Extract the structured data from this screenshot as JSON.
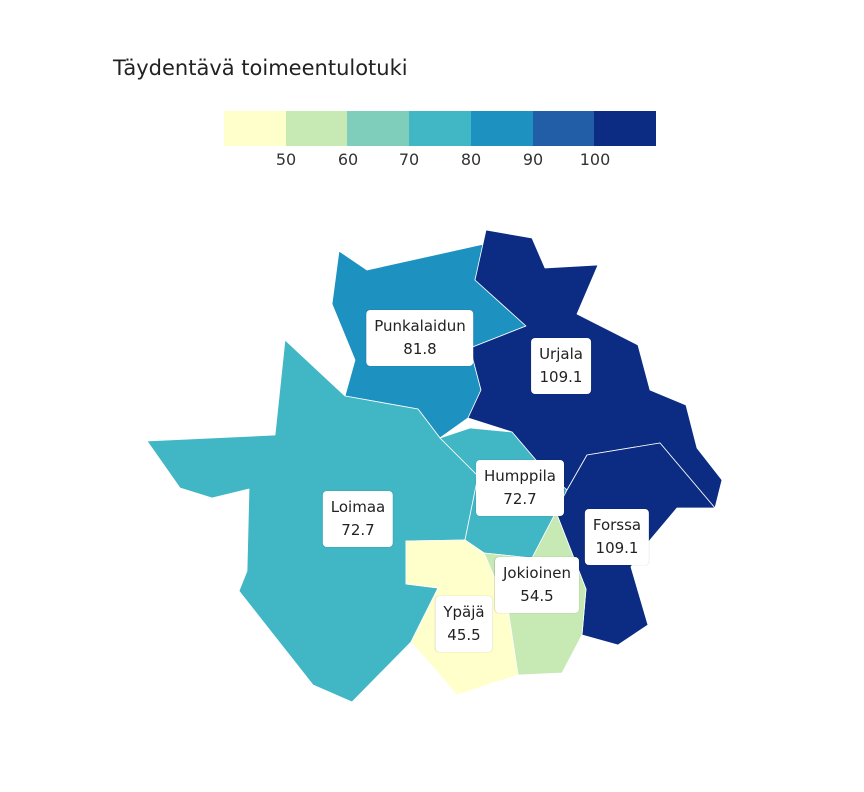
{
  "title": "Täydentävä toimeentulotuki",
  "legend": {
    "colors": [
      "#ffffcc",
      "#c7e9b4",
      "#7fcdbb",
      "#41b6c4",
      "#1d91c0",
      "#225ea8",
      "#0c2c84"
    ],
    "ticks": [
      "50",
      "60",
      "70",
      "80",
      "90",
      "100"
    ]
  },
  "regions": [
    {
      "name": "Punkalaidun",
      "value": "81.8",
      "color": "#1d91c0"
    },
    {
      "name": "Urjala",
      "value": "109.1",
      "color": "#0c2c84"
    },
    {
      "name": "Loimaa",
      "value": "72.7",
      "color": "#41b6c4"
    },
    {
      "name": "Humppila",
      "value": "72.7",
      "color": "#41b6c4"
    },
    {
      "name": "Forssa",
      "value": "109.1",
      "color": "#0c2c84"
    },
    {
      "name": "Jokioinen",
      "value": "54.5",
      "color": "#c7e9b4"
    },
    {
      "name": "Ypäjä",
      "value": "45.5",
      "color": "#ffffcc"
    }
  ]
}
